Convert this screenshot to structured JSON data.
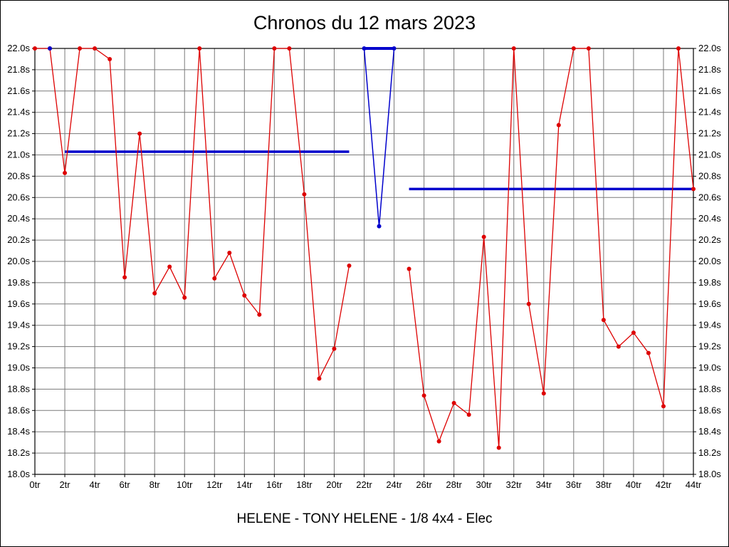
{
  "title": "Chronos du 12 mars 2023",
  "footer": "HELENE - TONY HELENE - 1/8 4x4 - Elec",
  "chart_data": {
    "type": "line",
    "title": "Chronos du 12 mars 2023",
    "footer": "HELENE - TONY HELENE - 1/8 4x4 - Elec",
    "xlim": [
      0,
      44
    ],
    "ylim": [
      18.0,
      22.0
    ],
    "y_step": 0.2,
    "x_tick_step": 2,
    "x_unit": "tr",
    "y_unit": "s",
    "grid": true,
    "grid_color": "#7a7a7a",
    "axis_color": "#000000",
    "red": "#dd0000",
    "blue": "#0000cc",
    "x_ticks": [
      "0tr",
      "2tr",
      "4tr",
      "6tr",
      "8tr",
      "10tr",
      "12tr",
      "14tr",
      "16tr",
      "18tr",
      "20tr",
      "22tr",
      "24tr",
      "26tr",
      "28tr",
      "30tr",
      "32tr",
      "34tr",
      "36tr",
      "38tr",
      "40tr",
      "42tr",
      "44tr"
    ],
    "y_ticks": [
      "18.0s",
      "18.2s",
      "18.4s",
      "18.6s",
      "18.8s",
      "19.0s",
      "19.2s",
      "19.4s",
      "19.6s",
      "19.8s",
      "20.0s",
      "20.2s",
      "20.4s",
      "20.6s",
      "20.8s",
      "21.0s",
      "21.2s",
      "21.4s",
      "21.6s",
      "21.8s",
      "22.0s"
    ],
    "series": [
      {
        "name": "run-1-laps",
        "color": "#dd0000",
        "line_width": 1.3,
        "point_radius": 3,
        "points": [
          [
            0,
            22.0
          ],
          [
            1,
            22.0
          ],
          [
            2,
            20.83
          ],
          [
            3,
            22.0
          ],
          [
            4,
            22.0
          ],
          [
            5,
            21.9
          ],
          [
            6,
            19.85
          ],
          [
            7,
            21.2
          ],
          [
            8,
            19.7
          ],
          [
            9,
            19.95
          ],
          [
            10,
            19.66
          ],
          [
            11,
            22.0
          ],
          [
            12,
            19.84
          ],
          [
            13,
            20.08
          ],
          [
            14,
            19.68
          ],
          [
            15,
            19.5
          ],
          [
            16,
            22.0
          ],
          [
            17,
            22.0
          ],
          [
            18,
            20.63
          ],
          [
            19,
            18.9
          ],
          [
            20,
            19.18
          ],
          [
            21,
            19.96
          ]
        ]
      },
      {
        "name": "run-2-laps",
        "color": "#dd0000",
        "line_width": 1.3,
        "point_radius": 3,
        "points": [
          [
            25,
            19.93
          ],
          [
            26,
            18.74
          ],
          [
            27,
            18.31
          ],
          [
            28,
            18.67
          ],
          [
            29,
            18.56
          ],
          [
            30,
            20.23
          ],
          [
            31,
            18.25
          ],
          [
            32,
            22.0
          ],
          [
            33,
            19.6
          ],
          [
            34,
            18.76
          ],
          [
            35,
            21.28
          ],
          [
            36,
            22.0
          ],
          [
            37,
            22.0
          ],
          [
            38,
            19.45
          ],
          [
            39,
            19.2
          ],
          [
            40,
            19.33
          ],
          [
            41,
            19.14
          ],
          [
            42,
            18.64
          ],
          [
            43,
            22.0
          ],
          [
            44,
            20.68
          ]
        ]
      },
      {
        "name": "pause-marker",
        "color": "#0000cc",
        "line_width": 1.5,
        "point_radius": 3,
        "points": [
          [
            22,
            22.0
          ],
          [
            23,
            20.33
          ],
          [
            24,
            22.0
          ]
        ]
      },
      {
        "name": "start-marker",
        "color": "#0000cc",
        "line_width": 1.5,
        "point_radius": 3,
        "points": [
          [
            1,
            22.0
          ]
        ]
      }
    ],
    "average_lines": [
      {
        "name": "run-1-average",
        "from_x": 2,
        "to_x": 21,
        "y": 21.03,
        "color": "#0000cc",
        "width": 3.5
      },
      {
        "name": "run-2-average",
        "from_x": 25,
        "to_x": 44,
        "y": 20.68,
        "color": "#0000cc",
        "width": 3.5
      },
      {
        "name": "pause-top-line",
        "from_x": 22,
        "to_x": 24,
        "y": 22.0,
        "color": "#0000cc",
        "width": 4
      }
    ]
  }
}
